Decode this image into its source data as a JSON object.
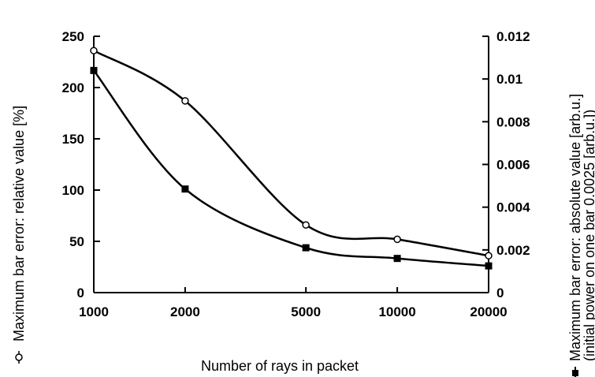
{
  "chart_data": {
    "type": "line",
    "x_scale": "log",
    "grid": false,
    "xlabel": "Number of rays in packet",
    "ylabel_left": "Maximum bar error: relative value [%]",
    "ylabel_right_line1": "Maximum bar error: absolute value [arb.u.]",
    "ylabel_right_line2": "(initial power on one bar 0.0025 [arb.u.])",
    "x_ticks": [
      "1000",
      "2000",
      "5000",
      "10000",
      "20000"
    ],
    "y_left_ticks": [
      "0",
      "50",
      "100",
      "150",
      "200",
      "250"
    ],
    "y_right_ticks": [
      "0",
      "0.002",
      "0.004",
      "0.006",
      "0.008",
      "0.01",
      "0.012"
    ],
    "xlim": [
      1000,
      20000
    ],
    "ylim_left": [
      0,
      250
    ],
    "ylim_right": [
      0,
      0.012
    ],
    "series": [
      {
        "marker": "open-circle",
        "axis": "left",
        "x": [
          1000,
          2000,
          5000,
          10000,
          20000
        ],
        "y": [
          236,
          187,
          66,
          52,
          36
        ]
      },
      {
        "marker": "filled-square",
        "axis": "right",
        "x": [
          1000,
          2000,
          5000,
          10000,
          20000
        ],
        "y": [
          0.0104,
          0.00485,
          0.0021,
          0.0016,
          0.00125
        ]
      }
    ]
  }
}
